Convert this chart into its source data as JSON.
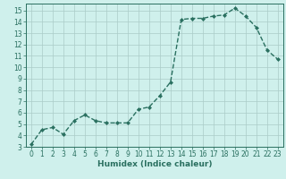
{
  "x": [
    0,
    1,
    2,
    3,
    4,
    5,
    6,
    7,
    8,
    9,
    10,
    11,
    12,
    13,
    14,
    15,
    16,
    17,
    18,
    19,
    20,
    21,
    22,
    23
  ],
  "y": [
    3.2,
    4.5,
    4.7,
    4.1,
    5.3,
    5.8,
    5.3,
    5.1,
    5.1,
    5.1,
    6.3,
    6.5,
    7.5,
    8.7,
    14.2,
    14.3,
    14.3,
    14.5,
    14.6,
    15.2,
    14.5,
    13.5,
    11.5,
    10.7
  ],
  "line_color": "#2a7060",
  "marker": "D",
  "marker_size": 2.0,
  "linewidth": 1.0,
  "bg_color": "#cff0ec",
  "grid_color": "#aaccc8",
  "xlabel": "Humidex (Indice chaleur)",
  "xlim": [
    -0.5,
    23.5
  ],
  "ylim": [
    3,
    15.6
  ],
  "yticks": [
    3,
    4,
    5,
    6,
    7,
    8,
    9,
    10,
    11,
    12,
    13,
    14,
    15
  ],
  "xticks": [
    0,
    1,
    2,
    3,
    4,
    5,
    6,
    7,
    8,
    9,
    10,
    11,
    12,
    13,
    14,
    15,
    16,
    17,
    18,
    19,
    20,
    21,
    22,
    23
  ],
  "tick_color": "#2a7060",
  "label_fontsize": 5.5,
  "xlabel_fontsize": 6.5,
  "axis_color": "#2a7060",
  "spine_color": "#2a7060"
}
